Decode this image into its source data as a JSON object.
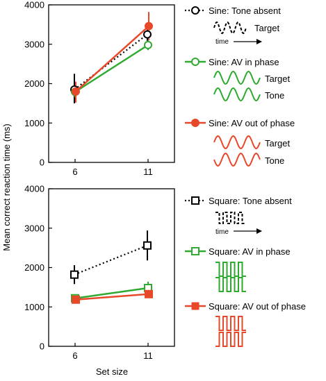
{
  "figure": {
    "ylabel": "Mean correct reaction time (ms)",
    "xlabel": "Set size"
  },
  "chart_data": [
    {
      "type": "line",
      "panel": "sine",
      "categories": [
        "6",
        "11"
      ],
      "x": [
        6,
        11
      ],
      "ylim": [
        0,
        4000
      ],
      "yticks": [
        "0",
        "1000",
        "2000",
        "3000",
        "4000"
      ],
      "xlabel": "Set size",
      "ylabel": "Mean correct reaction time (ms)",
      "grid": false,
      "legend_position": "right",
      "series": [
        {
          "name": "Sine: Tone absent",
          "color": "#000000",
          "marker": "circle-open",
          "dash": "dotted",
          "values": [
            1850,
            3250
          ],
          "err_low": [
            1500,
            2950
          ],
          "err_high": [
            2250,
            3500
          ]
        },
        {
          "name": "Sine: AV in phase",
          "color": "#2eaa2e",
          "marker": "circle-open",
          "dash": "solid",
          "values": [
            1790,
            2980
          ],
          "err_low": [
            1650,
            2850
          ],
          "err_high": [
            1950,
            3100
          ]
        },
        {
          "name": "Sine: AV out of phase",
          "color": "#e8482a",
          "marker": "circle-filled",
          "dash": "solid",
          "values": [
            1800,
            3460
          ],
          "err_low": [
            1520,
            3100
          ],
          "err_high": [
            2050,
            3820
          ]
        }
      ],
      "legend_labels": {
        "target": "Target",
        "tone": "Tone",
        "time": "time"
      }
    },
    {
      "type": "line",
      "panel": "square",
      "categories": [
        "6",
        "11"
      ],
      "x": [
        6,
        11
      ],
      "ylim": [
        0,
        4000
      ],
      "yticks": [
        "0",
        "1000",
        "2000",
        "3000",
        "4000"
      ],
      "xlabel": "Set size",
      "ylabel": "Mean correct reaction time (ms)",
      "grid": false,
      "legend_position": "right",
      "series": [
        {
          "name": "Square: Tone absent",
          "color": "#000000",
          "marker": "square-open",
          "dash": "dotted",
          "values": [
            1820,
            2560
          ],
          "err_low": [
            1580,
            2180
          ],
          "err_high": [
            2060,
            2940
          ]
        },
        {
          "name": "Square: AV in phase",
          "color": "#2eaa2e",
          "marker": "square-open",
          "dash": "solid",
          "values": [
            1220,
            1480
          ],
          "err_low": [
            1150,
            1330
          ],
          "err_high": [
            1290,
            1640
          ]
        },
        {
          "name": "Square: AV out of phase",
          "color": "#e8482a",
          "marker": "square-filled",
          "dash": "solid",
          "values": [
            1185,
            1325
          ],
          "err_low": [
            1130,
            1250
          ],
          "err_high": [
            1240,
            1400
          ]
        }
      ],
      "legend_labels": {
        "target": "Target",
        "tone": "Tone",
        "time": "time"
      }
    }
  ]
}
